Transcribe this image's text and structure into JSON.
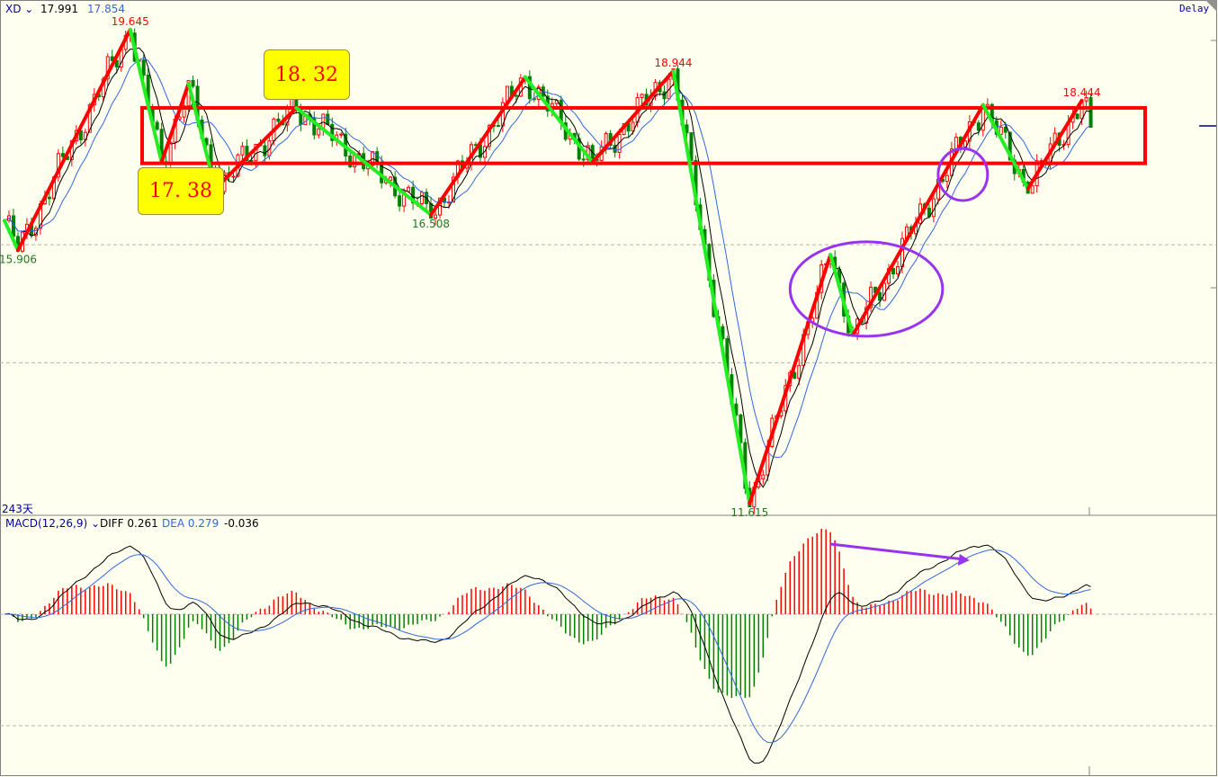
{
  "header": {
    "symbol": "XD",
    "price_1": "17.991",
    "price_2": "17.854",
    "delay_label": "Delay",
    "period_label": "243天"
  },
  "macd_header": {
    "name": "MACD(12,26,9)",
    "diff_label": "DIFF 0.261",
    "dea_label": "DEA 0.279",
    "macd_value": "-0.036"
  },
  "colors": {
    "background": "#fffff0",
    "up": "#ff0000",
    "down": "#008000",
    "zigzag_up": "#ff0000",
    "zigzag_down": "#22ee22",
    "ma_fast": "#000000",
    "ma_slow": "#3366dd",
    "annotation": "#9933ee",
    "callout_bg": "#ffff00"
  },
  "chart_data": {
    "type": "candlestick",
    "bars": 243,
    "ylim": [
      11.3,
      20.1
    ],
    "grid_levels": [
      16,
      14
    ],
    "zigzag_pivots": [
      {
        "bar": 0,
        "price": 16.41
      },
      {
        "bar": 3,
        "price": 15.906
      },
      {
        "bar": 28,
        "price": 19.645
      },
      {
        "bar": 35,
        "price": 17.4
      },
      {
        "bar": 41,
        "price": 18.73
      },
      {
        "bar": 47,
        "price": 16.95
      },
      {
        "bar": 65,
        "price": 18.32
      },
      {
        "bar": 95,
        "price": 16.508
      },
      {
        "bar": 116,
        "price": 18.84
      },
      {
        "bar": 131,
        "price": 17.4
      },
      {
        "bar": 149,
        "price": 18.944
      },
      {
        "bar": 166,
        "price": 11.615
      },
      {
        "bar": 184,
        "price": 15.83
      },
      {
        "bar": 189,
        "price": 14.47
      },
      {
        "bar": 218,
        "price": 18.37
      },
      {
        "bar": 228,
        "price": 16.95
      },
      {
        "bar": 240,
        "price": 18.444
      },
      {
        "bar": 242,
        "price": 17.991
      }
    ],
    "price_labels": [
      {
        "text": "19.645",
        "bar": 28,
        "price": 19.645,
        "kind": "high"
      },
      {
        "text": "18.944",
        "bar": 149,
        "price": 18.944,
        "kind": "high"
      },
      {
        "text": "18.444",
        "bar": 240,
        "price": 18.444,
        "kind": "high"
      },
      {
        "text": "15.906",
        "bar": 3,
        "price": 15.906,
        "kind": "low"
      },
      {
        "text": "16.508",
        "bar": 95,
        "price": 16.508,
        "kind": "low"
      },
      {
        "text": "11.615",
        "bar": 166,
        "price": 11.615,
        "kind": "low"
      }
    ],
    "range_box": {
      "top": 18.32,
      "bottom": 17.38,
      "from_bar": 31,
      "to_bar": 254
    },
    "callouts": [
      {
        "text": "18. 32",
        "price": 18.32
      },
      {
        "text": "17. 38",
        "price": 17.38
      }
    ],
    "ellipses": [
      {
        "from_bar": 175,
        "to_bar": 209,
        "top": 16.05,
        "bottom": 14.45
      },
      {
        "from_bar": 208,
        "to_bar": 219,
        "top": 17.63,
        "bottom": 16.75
      }
    ],
    "macd": {
      "fast": 12,
      "slow": 26,
      "signal": 9,
      "divergence_arrow": {
        "from_bar": 184,
        "to_bar": 215
      }
    }
  }
}
